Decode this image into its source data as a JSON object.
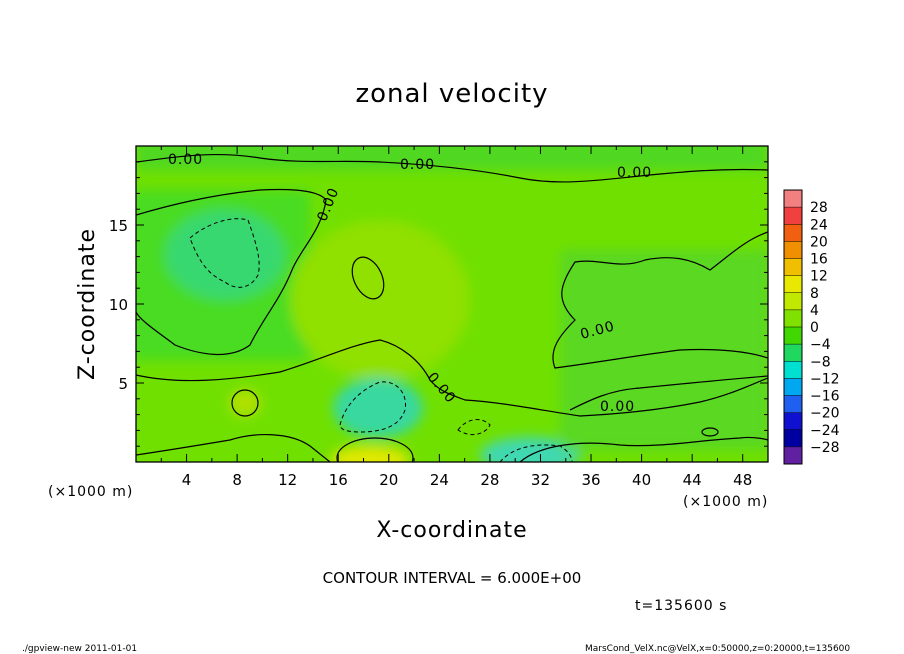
{
  "chart_data": {
    "type": "heatmap",
    "title": "zonal velocity",
    "xlabel": "X-coordinate",
    "ylabel": "Z-coordinate",
    "x_unit_note": "(×1000 m)",
    "z_unit_note": "(×1000 m)",
    "xlim": [
      0,
      50
    ],
    "ylim": [
      0,
      20
    ],
    "x_ticks": [
      4,
      8,
      12,
      16,
      20,
      24,
      28,
      32,
      36,
      40,
      44,
      48
    ],
    "y_ticks": [
      5,
      10,
      15
    ],
    "colorbar": {
      "labels": [
        "28",
        "24",
        "20",
        "16",
        "12",
        "8",
        "4",
        "0",
        "−4",
        "−8",
        "−12",
        "−16",
        "−20",
        "−24",
        "−28"
      ],
      "colors": [
        "#f28080",
        "#f04040",
        "#f06010",
        "#f09000",
        "#f0c000",
        "#e8e800",
        "#c0e800",
        "#80e000",
        "#40d800",
        "#20d860",
        "#00e0d0",
        "#00a8f0",
        "#2060f0",
        "#1010d0",
        "#0000a0",
        "#6020a0"
      ]
    },
    "contour_labels": [
      "0.00",
      "0.00",
      "0.00",
      "0.00",
      "0.00",
      "0.00",
      "0.00"
    ],
    "contour_interval_text": "CONTOUR INTERVAL = 6.000E+00",
    "time_text": "t=135600 s"
  },
  "footer": {
    "left": "./gpview-new   2011-01-01",
    "right": "MarsCond_VelX.nc@VelX,x=0:50000,z=0:20000,t=135600"
  }
}
